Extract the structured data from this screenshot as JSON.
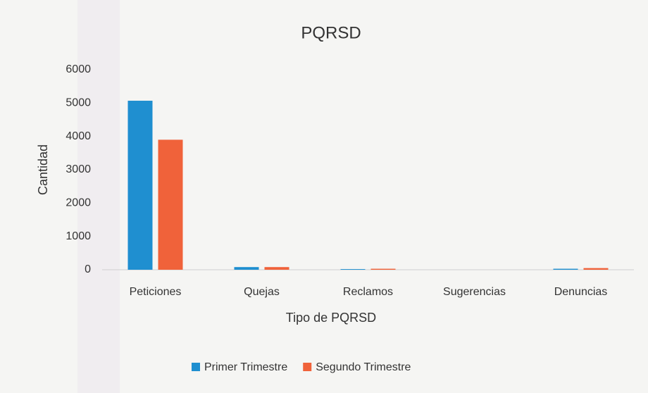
{
  "chart_data": {
    "type": "bar",
    "title": "PQRSD",
    "x_label": "Tipo de PQRSD",
    "y_label": "Cantidad",
    "categories": [
      "Peticiones",
      "Quejas",
      "Reclamos",
      "Sugerencias",
      "Denuncias"
    ],
    "series": [
      {
        "name": "Primer Trimestre",
        "color": "#1f8fd0",
        "values": [
          5070,
          80,
          20,
          0,
          30
        ]
      },
      {
        "name": "Segundo Trimestre",
        "color": "#f0623a",
        "values": [
          3900,
          80,
          30,
          0,
          50
        ]
      }
    ],
    "ylim": [
      0,
      6000
    ],
    "yticks": [
      0,
      1000,
      2000,
      3000,
      4000,
      5000,
      6000
    ],
    "grid": false,
    "legend": "bottom"
  }
}
